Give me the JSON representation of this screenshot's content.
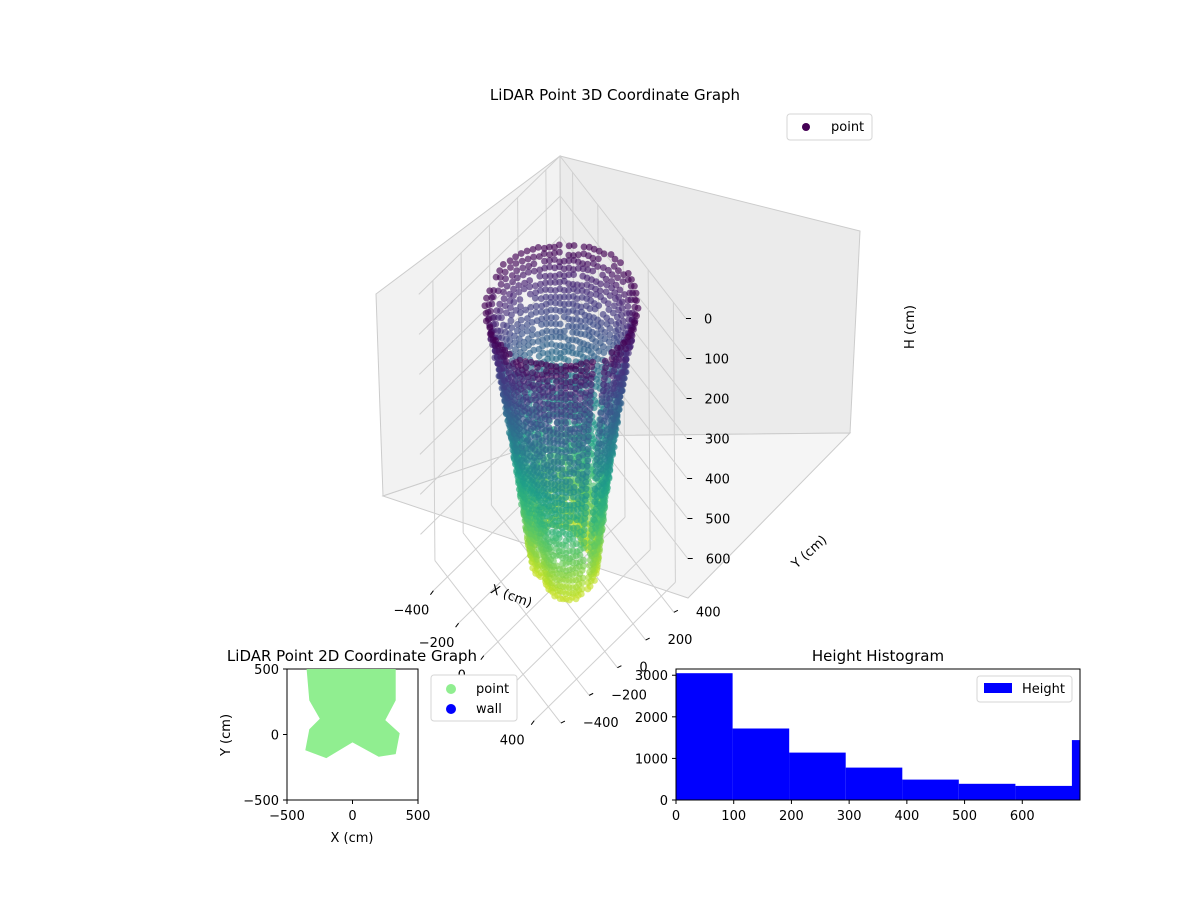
{
  "chart_data": [
    {
      "type": "scatter",
      "subtype": "3d",
      "title": "LiDAR Point 3D Coordinate Graph",
      "xlabel": "X (cm)",
      "ylabel": "Y (cm)",
      "zlabel": "H (cm)",
      "x_ticks": [
        "−400",
        "−200",
        "0",
        "200",
        "400"
      ],
      "y_ticks": [
        "−400",
        "−200",
        "0",
        "200",
        "400"
      ],
      "z_ticks": [
        "0",
        "100",
        "200",
        "300",
        "400",
        "500",
        "600"
      ],
      "xlim": [
        -500,
        500
      ],
      "ylim": [
        -500,
        500
      ],
      "zlim": [
        0,
        700
      ],
      "z_inverted": true,
      "colormap": "viridis",
      "legend": [
        {
          "label": "point",
          "color": "#440154"
        }
      ],
      "legend_position": "top-right",
      "grid": true
    },
    {
      "type": "scatter",
      "title": "LiDAR Point 2D Coordinate Graph",
      "xlabel": "X (cm)",
      "ylabel": "Y (cm)",
      "x_ticks": [
        "−500",
        "0",
        "500"
      ],
      "y_ticks": [
        "−500",
        "0",
        "500"
      ],
      "xlim": [
        -500,
        500
      ],
      "ylim": [
        -500,
        500
      ],
      "series": [
        {
          "name": "point",
          "color": "#90ee90"
        },
        {
          "name": "wall",
          "color": "#0000ff"
        }
      ],
      "legend_position": "outside-right",
      "grid": false
    },
    {
      "type": "bar",
      "subtype": "histogram",
      "title": "Height Histogram",
      "x_ticks": [
        "0",
        "100",
        "200",
        "300",
        "400",
        "500",
        "600"
      ],
      "y_ticks": [
        "0",
        "1000",
        "2000",
        "3000"
      ],
      "xlim": [
        0,
        700
      ],
      "ylim": [
        0,
        3150
      ],
      "bin_edges": [
        0,
        98,
        196,
        294,
        392,
        490,
        588,
        686,
        700
      ],
      "values": [
        3050,
        1720,
        1140,
        780,
        490,
        390,
        340,
        1440
      ],
      "series": [
        {
          "name": "Height",
          "color": "#0000ff"
        }
      ],
      "legend_position": "top-right",
      "grid": false
    }
  ]
}
